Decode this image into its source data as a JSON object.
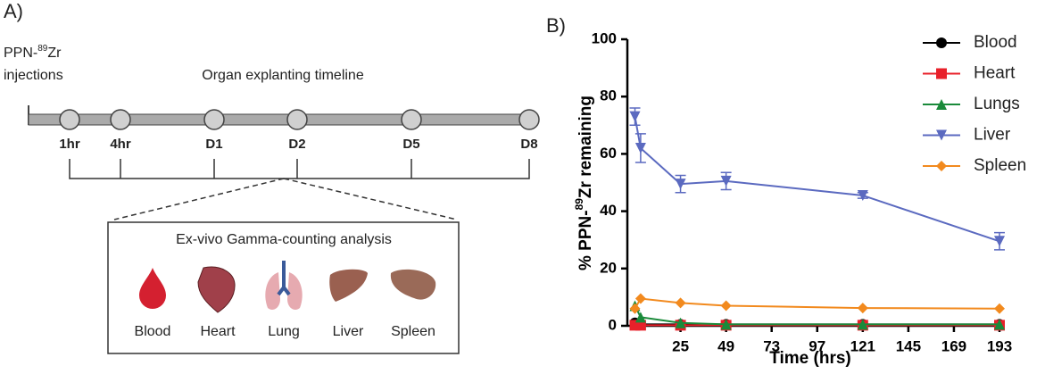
{
  "panel_a": {
    "label": "A)",
    "injection_prefix": "PPN-",
    "injection_sup": "89",
    "injection_suffix": "Zr",
    "injection_line2": "injections",
    "timeline_title": "Organ explanting timeline",
    "timepoints": [
      "1hr",
      "4hr",
      "D1",
      "D2",
      "D5",
      "D8"
    ],
    "box_title": "Ex-vivo Gamma-counting analysis",
    "organs": [
      "Blood",
      "Heart",
      "Lung",
      "Liver",
      "Spleen"
    ]
  },
  "chart_data": {
    "type": "line",
    "panel_label": "B)",
    "xlabel": "Time (hrs)",
    "ylabel": "% PPN-",
    "ylabel_sup": "89",
    "ylabel_suffix": "Zr remaining",
    "x": [
      1,
      4,
      25,
      49,
      121,
      193
    ],
    "xlim": [
      -3,
      193
    ],
    "xticks": [
      25,
      49,
      73,
      97,
      121,
      145,
      169,
      193
    ],
    "ylim": [
      0,
      100
    ],
    "yticks": [
      0,
      20,
      40,
      60,
      80,
      100
    ],
    "legend": "top-right",
    "series": [
      {
        "name": "Blood",
        "color": "#000000",
        "marker": "circle",
        "values": [
          1,
          0.5,
          0.5,
          0.5,
          0.5,
          0.5
        ]
      },
      {
        "name": "Heart",
        "color": "#e8202a",
        "marker": "square",
        "values": [
          0.2,
          0.2,
          0.2,
          0.2,
          0.2,
          0.2
        ]
      },
      {
        "name": "Lungs",
        "color": "#1a8a3a",
        "marker": "triangle-up",
        "values": [
          7,
          3,
          1,
          0.5,
          0.5,
          0.5
        ]
      },
      {
        "name": "Liver",
        "color": "#5b6ac0",
        "marker": "triangle-down",
        "values": [
          73,
          62,
          49.5,
          50.5,
          45.5,
          29.5
        ],
        "errors": [
          3,
          5,
          3,
          3,
          1,
          3
        ]
      },
      {
        "name": "Spleen",
        "color": "#f28a1e",
        "marker": "diamond",
        "values": [
          6,
          9.5,
          8,
          7,
          6.2,
          6
        ]
      }
    ]
  }
}
